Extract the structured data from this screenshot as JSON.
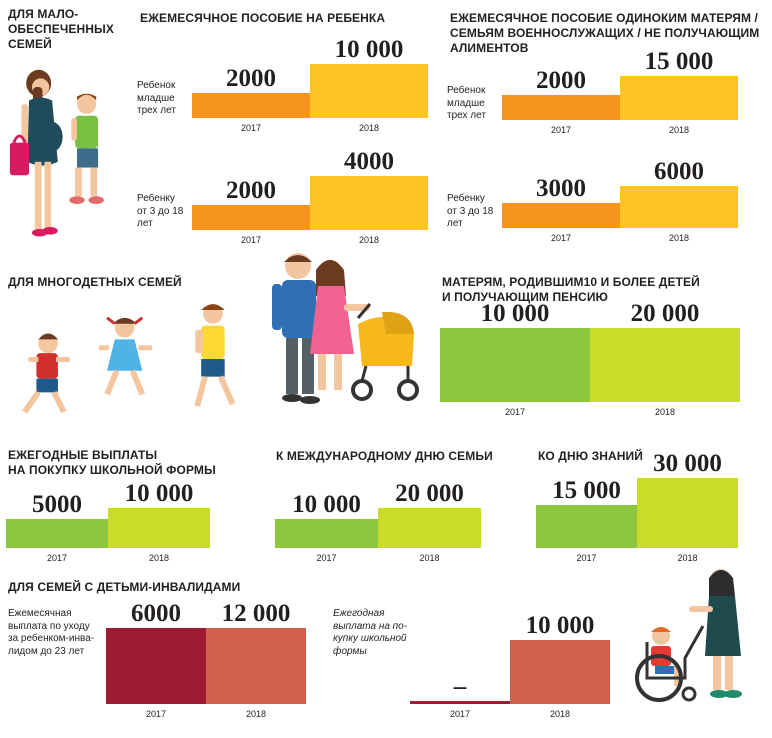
{
  "colors": {
    "orange": "#f7941d",
    "yellow": "#fdc423",
    "green": "#8dc63f",
    "lime": "#cbdb2a",
    "dark_red": "#9e1b32",
    "coral": "#d2604f"
  },
  "sections": {
    "low_income": {
      "title": "ДЛЯ МАЛО-\nОБЕСПЕЧЕННЫХ\nСЕМЕЙ"
    },
    "child_monthly": {
      "title": "ЕЖЕМЕСЯЧНОЕ ПОСОБИЕ НА РЕБЕНКА"
    },
    "single_mothers": {
      "title": "ЕЖЕМЕСЯЧНОЕ ПОСОБИЕ ОДИНОКИМ МАТЕРЯМ /\nСЕМЬЯМ ВОЕННОСЛУЖАЩИХ / НЕ ПОЛУЧАЮЩИМ\nАЛИМЕНТОВ"
    },
    "large_families": {
      "title": "ДЛЯ МНОГОДЕТНЫХ СЕМЕЙ"
    },
    "mothers_10": {
      "title": "МАТЕРЯМ, РОДИВШИМ10 И БОЛЕЕ ДЕТЕЙ\nИ ПОЛУЧАЮЩИМ ПЕНСИЮ"
    },
    "school_uniform": {
      "title": "ЕЖЕГОДНЫЕ ВЫПЛАТЫ\nНА ПОКУПКУ ШКОЛЬНОЙ ФОРМЫ"
    },
    "family_day": {
      "title": "К МЕЖДУНАРОДНОМУ ДНЮ СЕМЬИ"
    },
    "knowledge_day": {
      "title": "КО ДНЮ ЗНАНИЙ"
    },
    "disabled": {
      "title": "ДЛЯ СЕМЕЙ С ДЕТЬМИ-ИНВАЛИДАМИ"
    }
  },
  "labels": {
    "under3": "Ребенок\nмладше\nтрех лет",
    "3to18": "Ребенку\nот 3 до 18\nлет",
    "sm_under3": "Ребенок\nмладше\nтрех лет",
    "sm_3to18": "Ребенку\nот 3 до 18\nлет",
    "care": "Ежемесячная\nвыплата по уходу\nза ребенком-инва-\nлидом до 23 лет",
    "uniform": "Ежегодная\nвыплата на по-\nкупку школьной\nформы"
  },
  "chart_data": [
    {
      "id": "child_under3",
      "type": "bar",
      "categories": [
        "2017",
        "2018"
      ],
      "values": [
        2000,
        10000
      ],
      "value_labels": [
        "2000",
        "10 000"
      ],
      "colors": [
        "#f7941d",
        "#fdc423"
      ]
    },
    {
      "id": "child_3to18",
      "type": "bar",
      "categories": [
        "2017",
        "2018"
      ],
      "values": [
        2000,
        4000
      ],
      "value_labels": [
        "2000",
        "4000"
      ],
      "colors": [
        "#f7941d",
        "#fdc423"
      ]
    },
    {
      "id": "single_under3",
      "type": "bar",
      "categories": [
        "2017",
        "2018"
      ],
      "values": [
        2000,
        15000
      ],
      "value_labels": [
        "2000",
        "15 000"
      ],
      "colors": [
        "#f7941d",
        "#fdc423"
      ]
    },
    {
      "id": "single_3to18",
      "type": "bar",
      "categories": [
        "2017",
        "2018"
      ],
      "values": [
        3000,
        6000
      ],
      "value_labels": [
        "3000",
        "6000"
      ],
      "colors": [
        "#f7941d",
        "#fdc423"
      ]
    },
    {
      "id": "mothers10",
      "type": "bar",
      "categories": [
        "2017",
        "2018"
      ],
      "values": [
        10000,
        20000
      ],
      "value_labels": [
        "10 000",
        "20 000"
      ],
      "colors": [
        "#8dc63f",
        "#cbdb2a"
      ]
    },
    {
      "id": "uniform_large",
      "type": "bar",
      "categories": [
        "2017",
        "2018"
      ],
      "values": [
        5000,
        10000
      ],
      "value_labels": [
        "5000",
        "10 000"
      ],
      "colors": [
        "#8dc63f",
        "#cbdb2a"
      ]
    },
    {
      "id": "family_day",
      "type": "bar",
      "categories": [
        "2017",
        "2018"
      ],
      "values": [
        10000,
        20000
      ],
      "value_labels": [
        "10 000",
        "20 000"
      ],
      "colors": [
        "#8dc63f",
        "#cbdb2a"
      ]
    },
    {
      "id": "knowledge_day",
      "type": "bar",
      "categories": [
        "2017",
        "2018"
      ],
      "values": [
        15000,
        30000
      ],
      "value_labels": [
        "15 000",
        "30 000"
      ],
      "colors": [
        "#8dc63f",
        "#cbdb2a"
      ]
    },
    {
      "id": "disabled_care",
      "type": "bar",
      "categories": [
        "2017",
        "2018"
      ],
      "values": [
        6000,
        12000
      ],
      "value_labels": [
        "6000",
        "12 000"
      ],
      "colors": [
        "#9e1b32",
        "#d2604f"
      ]
    },
    {
      "id": "disabled_uniform",
      "type": "bar",
      "categories": [
        "2017",
        "2018"
      ],
      "values": [
        0,
        10000
      ],
      "value_labels": [
        "–",
        "10 000"
      ],
      "colors": [
        "#9e1b32",
        "#d2604f"
      ]
    }
  ]
}
